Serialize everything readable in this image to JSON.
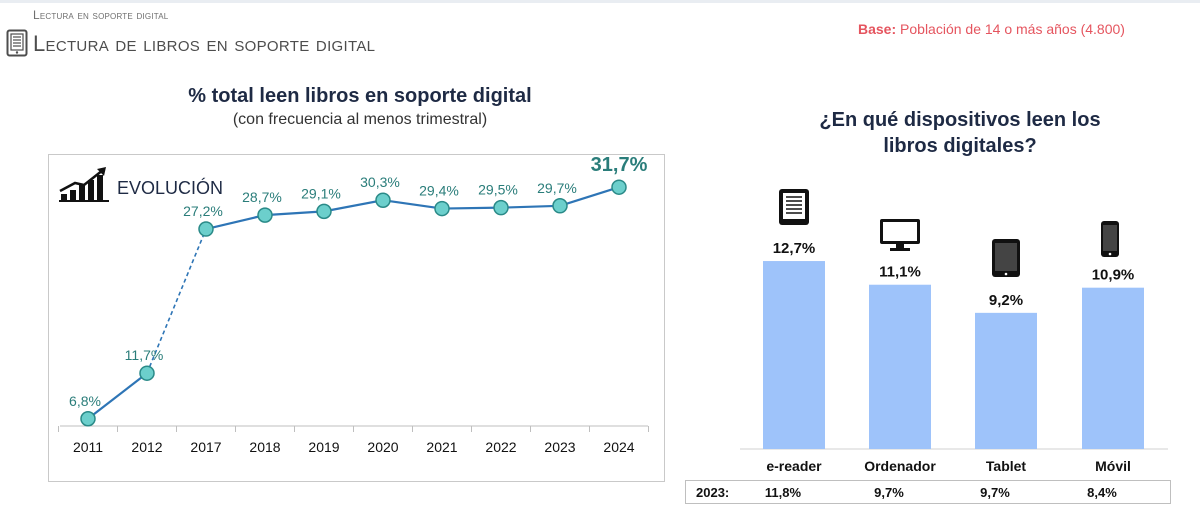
{
  "header": {
    "section": "Lectura en soporte digital",
    "title": "Lectura de libros en soporte digital",
    "base_label": "Base:",
    "base_value": "Población de 14 o más años (4.800)"
  },
  "left_panel": {
    "title": "% total leen libros en soporte digital",
    "subtitle": "(con frecuencia al menos trimestral)",
    "tag": "EVOLUCIÓN"
  },
  "right_panel": {
    "title_line1": "¿En qué dispositivos leen los",
    "title_line2": "libros digitales?",
    "ref_label": "2023:"
  },
  "colors": {
    "line": "#2e75b6",
    "marker_fill": "#6ccfcc",
    "marker_stroke": "#2a8a88",
    "line_label": "#2a7d7a",
    "bar": "#9ec3fa",
    "title": "#1e2a44",
    "base": "#e5555f"
  },
  "chart_data": [
    {
      "type": "line",
      "title": "% total leen libros en soporte digital",
      "subtitle": "(con frecuencia al menos trimestral)",
      "x": [
        "2011",
        "2012",
        "2017",
        "2018",
        "2019",
        "2020",
        "2021",
        "2022",
        "2023",
        "2024"
      ],
      "values": [
        6.8,
        11.7,
        27.2,
        28.7,
        29.1,
        30.3,
        29.4,
        29.5,
        29.7,
        31.7
      ],
      "labels": [
        "6,8%",
        "11,7%",
        "27,2%",
        "28,7%",
        "29,1%",
        "30,3%",
        "29,4%",
        "29,5%",
        "29,7%",
        "31,7%"
      ],
      "dashed_segment": [
        "2012",
        "2017"
      ],
      "highlight_last": true,
      "ylim": [
        0,
        40
      ],
      "grid": false
    },
    {
      "type": "bar",
      "title": "¿En qué dispositivos leen los libros digitales?",
      "categories": [
        "e-reader",
        "Ordenador",
        "Tablet",
        "Móvil"
      ],
      "icons": [
        "ereader-icon",
        "monitor-icon",
        "tablet-icon",
        "smartphone-icon"
      ],
      "values": [
        12.7,
        11.1,
        9.2,
        10.9
      ],
      "labels": [
        "12,7%",
        "11,1%",
        "9,2%",
        "10,9%"
      ],
      "reference_2023": [
        "11,8%",
        "9,7%",
        "9,7%",
        "8,4%"
      ],
      "ylim": [
        0,
        14
      ],
      "grid": false
    }
  ]
}
